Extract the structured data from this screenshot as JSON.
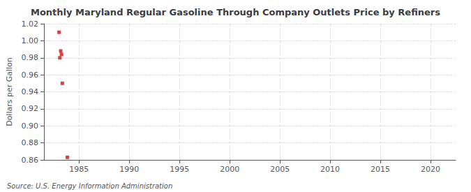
{
  "chart_data": {
    "type": "scatter",
    "title": "Monthly Maryland Regular Gasoline Through Company Outlets Price by Refiners",
    "ylabel": "Dollars per Gallon",
    "annotations": [
      "Source: U.S. Energy Information Administration"
    ],
    "x": [
      1983.0,
      1983.08,
      1983.17,
      1983.25,
      1983.33,
      1983.83
    ],
    "values": [
      1.01,
      0.98,
      0.988,
      0.984,
      0.95,
      0.863
    ],
    "color": "#cc1111",
    "marker": "square",
    "xlim": [
      1981.5,
      2022.5
    ],
    "ylim": [
      0.86,
      1.02
    ],
    "xticks": [
      1985,
      1990,
      1995,
      2000,
      2005,
      2010,
      2015,
      2020
    ],
    "yticks": [
      0.86,
      0.88,
      {
        "value": 0.9,
        "label": "0.90"
      },
      0.92,
      0.94,
      0.96,
      0.98,
      {
        "value": 1,
        "label": "1.00"
      },
      1.02
    ],
    "grid": true
  }
}
